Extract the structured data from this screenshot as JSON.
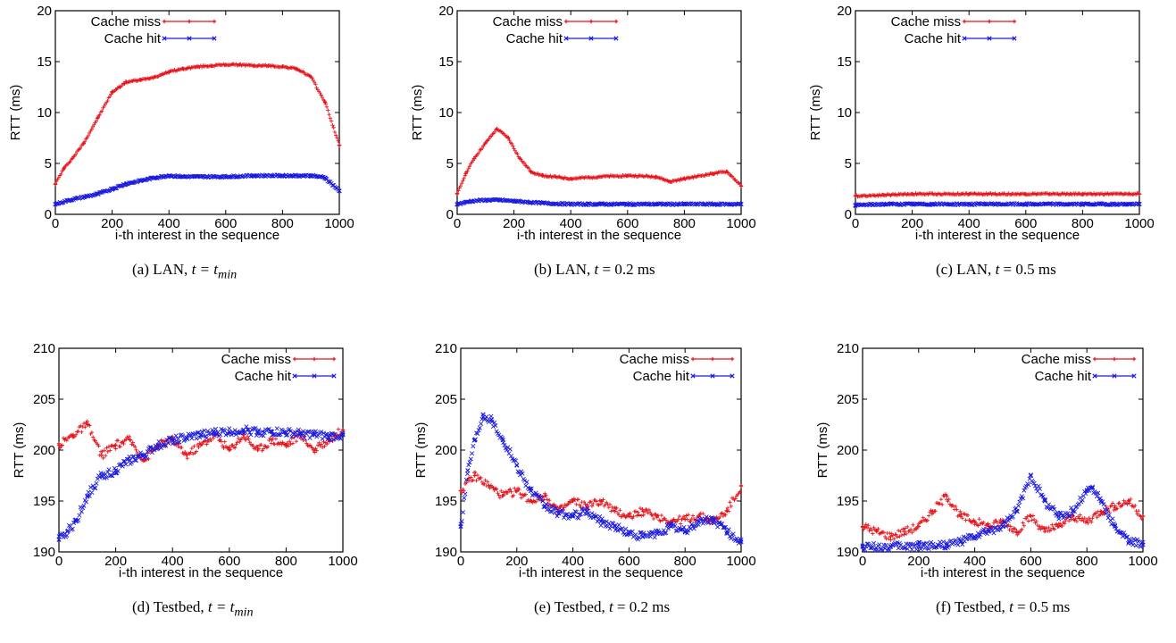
{
  "figure": {
    "colors": {
      "miss": "#e8121a",
      "hit": "#1a1ae0",
      "axis": "#000000"
    }
  },
  "legend_labels": {
    "miss": "Cache miss",
    "hit": "Cache hit"
  },
  "chart_data": [
    {
      "id": "a",
      "type": "scatter",
      "caption": {
        "prefix": "(a) LAN,",
        "math": "t = t",
        "sub": "min",
        "suffix": ""
      },
      "xlabel": "i-th interest in the sequence",
      "ylabel": "RTT (ms)",
      "xlim": [
        0,
        1000
      ],
      "ylim": [
        0,
        20
      ],
      "xticks": [
        "0",
        "200",
        "400",
        "600",
        "800",
        "1000"
      ],
      "yticks": [
        "0",
        "5",
        "10",
        "15",
        "20"
      ],
      "legend": "top-left",
      "series": [
        {
          "name": "Cache miss",
          "key": "miss",
          "x": [
            0,
            30,
            60,
            100,
            150,
            200,
            250,
            300,
            350,
            400,
            450,
            500,
            550,
            600,
            650,
            700,
            750,
            800,
            850,
            900,
            950,
            1000
          ],
          "y": [
            3.0,
            4.5,
            5.5,
            7.0,
            9.5,
            12.0,
            13.0,
            13.2,
            13.5,
            14.0,
            14.3,
            14.5,
            14.6,
            14.7,
            14.7,
            14.6,
            14.6,
            14.5,
            14.3,
            13.5,
            11.0,
            6.8
          ]
        },
        {
          "name": "Cache hit",
          "key": "hit",
          "x": [
            0,
            50,
            100,
            150,
            200,
            250,
            300,
            350,
            400,
            450,
            500,
            600,
            700,
            800,
            900,
            950,
            1000
          ],
          "y": [
            1.0,
            1.4,
            1.7,
            2.0,
            2.5,
            3.0,
            3.3,
            3.6,
            3.8,
            3.7,
            3.7,
            3.7,
            3.8,
            3.8,
            3.8,
            3.6,
            2.3
          ]
        }
      ]
    },
    {
      "id": "b",
      "type": "scatter",
      "caption": {
        "prefix": "(b) LAN,",
        "math": "t",
        "sub": "",
        "suffix": " = 0.2 ms"
      },
      "xlabel": "i-th interest in the sequence",
      "ylabel": "RTT (ms)",
      "xlim": [
        0,
        1000
      ],
      "ylim": [
        0,
        20
      ],
      "xticks": [
        "0",
        "200",
        "400",
        "600",
        "800",
        "1000"
      ],
      "yticks": [
        "0",
        "5",
        "10",
        "15",
        "20"
      ],
      "legend": "top-left",
      "series": [
        {
          "name": "Cache miss",
          "key": "miss",
          "x": [
            0,
            30,
            60,
            100,
            140,
            180,
            220,
            260,
            300,
            400,
            500,
            600,
            700,
            750,
            800,
            900,
            950,
            1000
          ],
          "y": [
            2.0,
            4.0,
            5.5,
            7.0,
            8.4,
            7.5,
            5.5,
            4.2,
            3.8,
            3.5,
            3.7,
            3.8,
            3.7,
            3.2,
            3.5,
            4.0,
            4.2,
            2.8
          ]
        },
        {
          "name": "Cache hit",
          "key": "hit",
          "x": [
            0,
            50,
            100,
            150,
            200,
            300,
            400,
            500,
            600,
            700,
            800,
            900,
            1000
          ],
          "y": [
            1.0,
            1.3,
            1.4,
            1.4,
            1.3,
            1.1,
            1.0,
            1.0,
            1.0,
            1.0,
            1.0,
            1.0,
            1.0
          ]
        }
      ]
    },
    {
      "id": "c",
      "type": "scatter",
      "caption": {
        "prefix": "(c) LAN,",
        "math": "t",
        "sub": "",
        "suffix": " = 0.5 ms"
      },
      "xlabel": "i-th interest in the sequence",
      "ylabel": "RTT (ms)",
      "xlim": [
        0,
        1000
      ],
      "ylim": [
        0,
        20
      ],
      "xticks": [
        "0",
        "200",
        "400",
        "600",
        "800",
        "1000"
      ],
      "yticks": [
        "0",
        "5",
        "10",
        "15",
        "20"
      ],
      "legend": "top-left",
      "series": [
        {
          "name": "Cache miss",
          "key": "miss",
          "x": [
            0,
            100,
            200,
            400,
            600,
            800,
            1000
          ],
          "y": [
            1.8,
            1.9,
            2.0,
            2.0,
            2.0,
            2.0,
            2.0
          ]
        },
        {
          "name": "Cache hit",
          "key": "hit",
          "x": [
            0,
            100,
            200,
            400,
            600,
            800,
            1000
          ],
          "y": [
            0.9,
            1.0,
            1.0,
            1.0,
            1.0,
            1.0,
            1.0
          ]
        }
      ]
    },
    {
      "id": "d",
      "type": "scatter",
      "caption": {
        "prefix": "(d) Testbed,",
        "math": "t = t",
        "sub": "min",
        "suffix": ""
      },
      "xlabel": "i-th interest in the sequence",
      "ylabel": "RTT (ms)",
      "xlim": [
        0,
        1000
      ],
      "ylim": [
        190,
        210
      ],
      "xticks": [
        "0",
        "200",
        "400",
        "600",
        "800",
        "1000"
      ],
      "yticks": [
        "190",
        "195",
        "200",
        "205",
        "210"
      ],
      "legend": "top-right",
      "series": [
        {
          "name": "Cache miss",
          "key": "miss",
          "x": [
            0,
            50,
            100,
            150,
            200,
            250,
            300,
            350,
            400,
            450,
            500,
            550,
            600,
            650,
            700,
            750,
            800,
            850,
            900,
            950,
            1000
          ],
          "y": [
            200.5,
            201.5,
            202.5,
            199.5,
            200.5,
            201.0,
            199.0,
            200.5,
            201.0,
            199.5,
            200.5,
            201.5,
            200.0,
            201.5,
            200.0,
            201.0,
            200.5,
            201.5,
            200.0,
            201.0,
            202.0
          ]
        },
        {
          "name": "Cache hit",
          "key": "hit",
          "x": [
            0,
            30,
            60,
            100,
            150,
            200,
            250,
            300,
            350,
            400,
            450,
            500,
            550,
            600,
            650,
            700,
            750,
            800,
            850,
            900,
            950,
            1000
          ],
          "y": [
            191.2,
            192.0,
            193.0,
            195.5,
            197.5,
            198.0,
            199.0,
            199.5,
            200.5,
            201.0,
            201.2,
            201.5,
            201.7,
            201.8,
            202.0,
            201.8,
            201.8,
            201.7,
            201.6,
            201.5,
            201.3,
            201.5
          ]
        }
      ]
    },
    {
      "id": "e",
      "type": "scatter",
      "caption": {
        "prefix": "(e) Testbed,",
        "math": "t",
        "sub": "",
        "suffix": " = 0.2 ms"
      },
      "xlabel": "i-th interest in the sequence",
      "ylabel": "RTT (ms)",
      "xlim": [
        0,
        1000
      ],
      "ylim": [
        190,
        210
      ],
      "xticks": [
        "0",
        "200",
        "400",
        "600",
        "800",
        "1000"
      ],
      "yticks": [
        "190",
        "195",
        "200",
        "205",
        "210"
      ],
      "legend": "top-right",
      "series": [
        {
          "name": "Cache miss",
          "key": "miss",
          "x": [
            0,
            50,
            100,
            150,
            200,
            250,
            300,
            350,
            400,
            450,
            500,
            550,
            600,
            650,
            700,
            750,
            800,
            850,
            900,
            950,
            1000
          ],
          "y": [
            196.0,
            197.5,
            196.5,
            195.5,
            196.0,
            195.0,
            195.5,
            194.0,
            195.0,
            194.5,
            195.0,
            194.0,
            193.5,
            194.0,
            193.5,
            193.0,
            193.2,
            193.5,
            193.0,
            194.0,
            196.5
          ]
        },
        {
          "name": "Cache hit",
          "key": "hit",
          "x": [
            0,
            25,
            50,
            80,
            110,
            150,
            200,
            250,
            300,
            350,
            400,
            450,
            500,
            550,
            600,
            650,
            700,
            750,
            800,
            850,
            900,
            950,
            1000
          ],
          "y": [
            192.5,
            198.0,
            201.0,
            203.5,
            203.0,
            201.0,
            198.5,
            196.0,
            194.5,
            193.8,
            193.5,
            194.0,
            193.0,
            192.5,
            191.8,
            191.5,
            191.8,
            192.5,
            192.0,
            193.0,
            193.2,
            192.0,
            191.0
          ]
        }
      ]
    },
    {
      "id": "f",
      "type": "scatter",
      "caption": {
        "prefix": "(f) Testbed,",
        "math": "t",
        "sub": "",
        "suffix": " = 0.5 ms"
      },
      "xlabel": "i-th interest in the sequence",
      "ylabel": "RTT (ms)",
      "xlim": [
        0,
        1000
      ],
      "ylim": [
        190,
        210
      ],
      "xticks": [
        "0",
        "200",
        "400",
        "600",
        "800",
        "1000"
      ],
      "yticks": [
        "190",
        "195",
        "200",
        "205",
        "210"
      ],
      "legend": "top-right",
      "series": [
        {
          "name": "Cache miss",
          "key": "miss",
          "x": [
            0,
            50,
            100,
            150,
            200,
            250,
            300,
            350,
            400,
            450,
            500,
            550,
            600,
            650,
            700,
            750,
            800,
            850,
            900,
            950,
            1000
          ],
          "y": [
            192.5,
            192.0,
            191.5,
            192.0,
            192.5,
            194.0,
            195.5,
            193.5,
            193.0,
            192.5,
            193.0,
            192.0,
            193.5,
            192.0,
            192.5,
            193.5,
            193.0,
            194.0,
            194.5,
            195.0,
            193.5
          ]
        },
        {
          "name": "Cache hit",
          "key": "hit",
          "x": [
            0,
            100,
            200,
            300,
            350,
            400,
            450,
            500,
            550,
            600,
            650,
            700,
            750,
            800,
            820,
            850,
            900,
            950,
            1000
          ],
          "y": [
            190.5,
            190.5,
            190.6,
            190.7,
            191.0,
            191.5,
            192.0,
            192.5,
            194.0,
            197.5,
            195.0,
            193.5,
            194.0,
            196.0,
            196.3,
            195.0,
            192.5,
            191.0,
            190.7
          ]
        }
      ]
    }
  ]
}
